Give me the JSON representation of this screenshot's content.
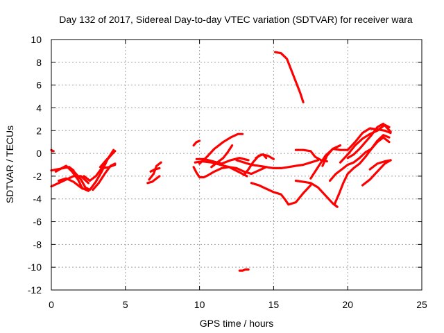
{
  "chart_data": {
    "type": "line",
    "title": "Day 132 of 2017, Sidereal Day-to-day VTEC variation (SDTVAR) for receiver wara",
    "xlabel": "GPS time / hours",
    "ylabel": "SDTVAR / TECUs",
    "xlim": [
      0,
      25
    ],
    "ylim": [
      -12,
      10
    ],
    "xticks": [
      0,
      5,
      10,
      15,
      20,
      25
    ],
    "yticks": [
      -12,
      -10,
      -8,
      -6,
      -4,
      -2,
      0,
      2,
      4,
      6,
      8,
      10
    ],
    "grid": true,
    "color": "#ff0000",
    "series": [
      {
        "x": [
          0.0,
          0.1,
          0.15
        ],
        "y": [
          0.3,
          0.2,
          0.2
        ]
      },
      {
        "x": [
          0.0,
          0.5,
          1.0,
          1.5,
          2.0,
          2.5
        ],
        "y": [
          -2.9,
          -2.6,
          -2.3,
          -2.0,
          -2.0,
          -2.6
        ]
      },
      {
        "x": [
          0.0,
          0.4,
          0.8,
          1.2,
          1.5
        ],
        "y": [
          -1.5,
          -1.4,
          -1.3,
          -1.2,
          -1.5
        ]
      },
      {
        "x": [
          0.3,
          0.7,
          1.0,
          1.4,
          1.8,
          2.1
        ],
        "y": [
          -1.6,
          -1.3,
          -1.1,
          -1.6,
          -2.3,
          -3.1
        ]
      },
      {
        "x": [
          0.5,
          1.0,
          1.5,
          2.0,
          2.5
        ],
        "y": [
          -2.4,
          -2.2,
          -2.5,
          -3.0,
          -3.3
        ]
      },
      {
        "x": [
          1.2,
          1.6,
          2.0,
          2.3,
          2.6,
          3.0,
          3.4,
          3.8,
          4.2
        ],
        "y": [
          -1.2,
          -1.7,
          -2.3,
          -3.0,
          -3.2,
          -2.5,
          -1.6,
          -0.5,
          0.3
        ]
      },
      {
        "x": [
          2.2,
          2.6,
          3.0,
          3.4,
          3.8,
          4.2
        ],
        "y": [
          -2.0,
          -2.4,
          -2.0,
          -1.3,
          -0.5,
          0.1
        ]
      },
      {
        "x": [
          2.8,
          3.2,
          3.6,
          4.0,
          4.3
        ],
        "y": [
          -3.2,
          -2.6,
          -1.8,
          -1.1,
          -0.9
        ]
      },
      {
        "x": [
          3.3,
          3.7,
          4.0,
          4.3
        ],
        "y": [
          -1.2,
          -0.6,
          -0.2,
          0.2
        ]
      },
      {
        "x": [
          3.5,
          3.9,
          4.3
        ],
        "y": [
          -1.3,
          -1.2,
          -1.0
        ]
      },
      {
        "x": [
          6.5,
          6.8,
          7.0,
          7.3
        ],
        "y": [
          -2.6,
          -2.5,
          -2.3,
          -2.0
        ]
      },
      {
        "x": [
          6.6,
          6.9,
          7.1,
          7.4
        ],
        "y": [
          -2.3,
          -1.8,
          -1.1,
          -0.8
        ]
      },
      {
        "x": [
          6.7,
          7.0,
          7.3
        ],
        "y": [
          -1.6,
          -1.4,
          -1.3
        ]
      },
      {
        "x": [
          9.6,
          9.8,
          10.0
        ],
        "y": [
          0.7,
          1.0,
          1.1
        ]
      },
      {
        "x": [
          9.6,
          9.8,
          10.0,
          10.3,
          10.6,
          11.0,
          11.5,
          12.0,
          12.5,
          13.0,
          13.5,
          14.0,
          14.5
        ],
        "y": [
          -1.2,
          -1.7,
          -2.1,
          -2.1,
          -1.9,
          -1.6,
          -1.3,
          -1.2,
          -1.3,
          -1.6,
          -1.8,
          -1.5,
          -1.2
        ]
      },
      {
        "x": [
          9.7,
          10.2,
          10.8,
          11.4,
          12.0,
          12.6,
          13.2
        ],
        "y": [
          -0.8,
          -0.7,
          -0.8,
          -1.0,
          -1.2,
          -1.6,
          -2.0
        ]
      },
      {
        "x": [
          9.8,
          10.3,
          10.9,
          11.5,
          12.1,
          12.7,
          13.3
        ],
        "y": [
          -0.5,
          -0.5,
          -0.7,
          -0.9,
          -0.6,
          -0.4,
          -0.6
        ]
      },
      {
        "x": [
          10.0,
          10.5,
          11.0,
          11.6,
          12.1,
          12.6,
          12.9
        ],
        "y": [
          -0.9,
          -0.3,
          0.4,
          1.0,
          1.4,
          1.7,
          1.7
        ]
      },
      {
        "x": [
          10.8,
          11.2,
          11.6,
          11.9,
          12.2
        ],
        "y": [
          -1.2,
          -0.8,
          -0.4,
          0.1,
          0.7
        ]
      },
      {
        "x": [
          12.5,
          13.0,
          13.5,
          14.0,
          14.5,
          15.0,
          15.5,
          16.0,
          16.5,
          17.0,
          17.5,
          18.0
        ],
        "y": [
          -0.6,
          -0.8,
          -1.0,
          -1.1,
          -1.2,
          -1.3,
          -1.3,
          -1.2,
          -1.1,
          -1.0,
          -0.8,
          -0.6
        ]
      },
      {
        "x": [
          13.0,
          13.3,
          13.6,
          14.0,
          14.3,
          14.5
        ],
        "y": [
          -1.9,
          -1.4,
          -0.8,
          -0.2,
          -0.1,
          -0.4
        ]
      },
      {
        "x": [
          13.8,
          14.2,
          14.6,
          15.0
        ],
        "y": [
          -0.4,
          -0.1,
          -0.2,
          -0.5
        ]
      },
      {
        "x": [
          13.5,
          14.0,
          14.5,
          15.0,
          15.5,
          15.8,
          16.0,
          16.5,
          17.0,
          17.5
        ],
        "y": [
          -2.6,
          -2.8,
          -3.1,
          -3.4,
          -3.6,
          -4.1,
          -4.5,
          -4.3,
          -3.5,
          -2.8
        ]
      },
      {
        "x": [
          15.1,
          15.5,
          15.9,
          16.2,
          16.5,
          16.8,
          17.0
        ],
        "y": [
          8.9,
          8.8,
          8.3,
          7.3,
          6.3,
          5.3,
          4.5
        ]
      },
      {
        "x": [
          16.5,
          17.0,
          17.5,
          18.0,
          18.5,
          19.0,
          19.3
        ],
        "y": [
          -2.4,
          -2.5,
          -2.6,
          -3.0,
          -3.7,
          -4.4,
          -4.7
        ]
      },
      {
        "x": [
          16.5,
          17.0,
          17.5,
          17.8,
          18.2,
          18.6
        ],
        "y": [
          0.3,
          0.3,
          0.2,
          -0.3,
          -0.6,
          -0.7
        ]
      },
      {
        "x": [
          17.5,
          18.0,
          18.5,
          19.0,
          19.5,
          20.0,
          20.5,
          21.0,
          21.5,
          22.0,
          22.5,
          22.9
        ],
        "y": [
          -2.2,
          -1.2,
          -0.2,
          0.4,
          0.3,
          0.3,
          1.0,
          1.8,
          2.2,
          2.1,
          2.0,
          1.8
        ]
      },
      {
        "x": [
          18.3,
          18.6,
          19.0,
          19.5
        ],
        "y": [
          -1.1,
          -0.2,
          0.4,
          0.7
        ]
      },
      {
        "x": [
          18.8,
          19.2,
          19.6,
          20.0,
          20.4,
          20.8,
          21.2,
          21.6,
          22.0,
          22.4,
          22.8
        ],
        "y": [
          -2.4,
          -1.8,
          -1.4,
          -1.0,
          -0.8,
          -0.4,
          0.1,
          0.4,
          1.1,
          1.6,
          1.4
        ]
      },
      {
        "x": [
          19.1,
          19.4,
          19.7,
          20.0,
          20.4,
          20.8,
          21.2,
          21.6,
          22.0,
          22.4,
          22.8
        ],
        "y": [
          -4.5,
          -3.6,
          -2.6,
          -1.8,
          -1.3,
          -0.9,
          -0.3,
          0.4,
          1.0,
          1.4,
          1.0
        ]
      },
      {
        "x": [
          19.5,
          20.0,
          20.5,
          21.0,
          21.5,
          22.0,
          22.5,
          22.8
        ],
        "y": [
          -0.8,
          -0.1,
          0.7,
          1.3,
          1.7,
          2.0,
          2.5,
          2.3
        ]
      },
      {
        "x": [
          21.0,
          21.5,
          22.0,
          22.5,
          22.9
        ],
        "y": [
          -2.8,
          -2.3,
          -1.6,
          -0.9,
          -0.6
        ]
      },
      {
        "x": [
          21.5,
          22.0,
          22.5,
          22.9
        ],
        "y": [
          -1.4,
          -0.9,
          -0.7,
          -0.6
        ]
      },
      {
        "x": [
          20.0,
          20.4,
          20.8,
          21.2,
          21.6,
          22.0,
          22.4,
          22.9
        ],
        "y": [
          -0.4,
          -0.1,
          0.4,
          1.0,
          1.6,
          2.3,
          2.6,
          1.9
        ]
      },
      {
        "x": [
          12.7,
          12.9,
          13.1,
          13.3
        ],
        "y": [
          -10.3,
          -10.3,
          -10.2,
          -10.2
        ]
      }
    ]
  }
}
